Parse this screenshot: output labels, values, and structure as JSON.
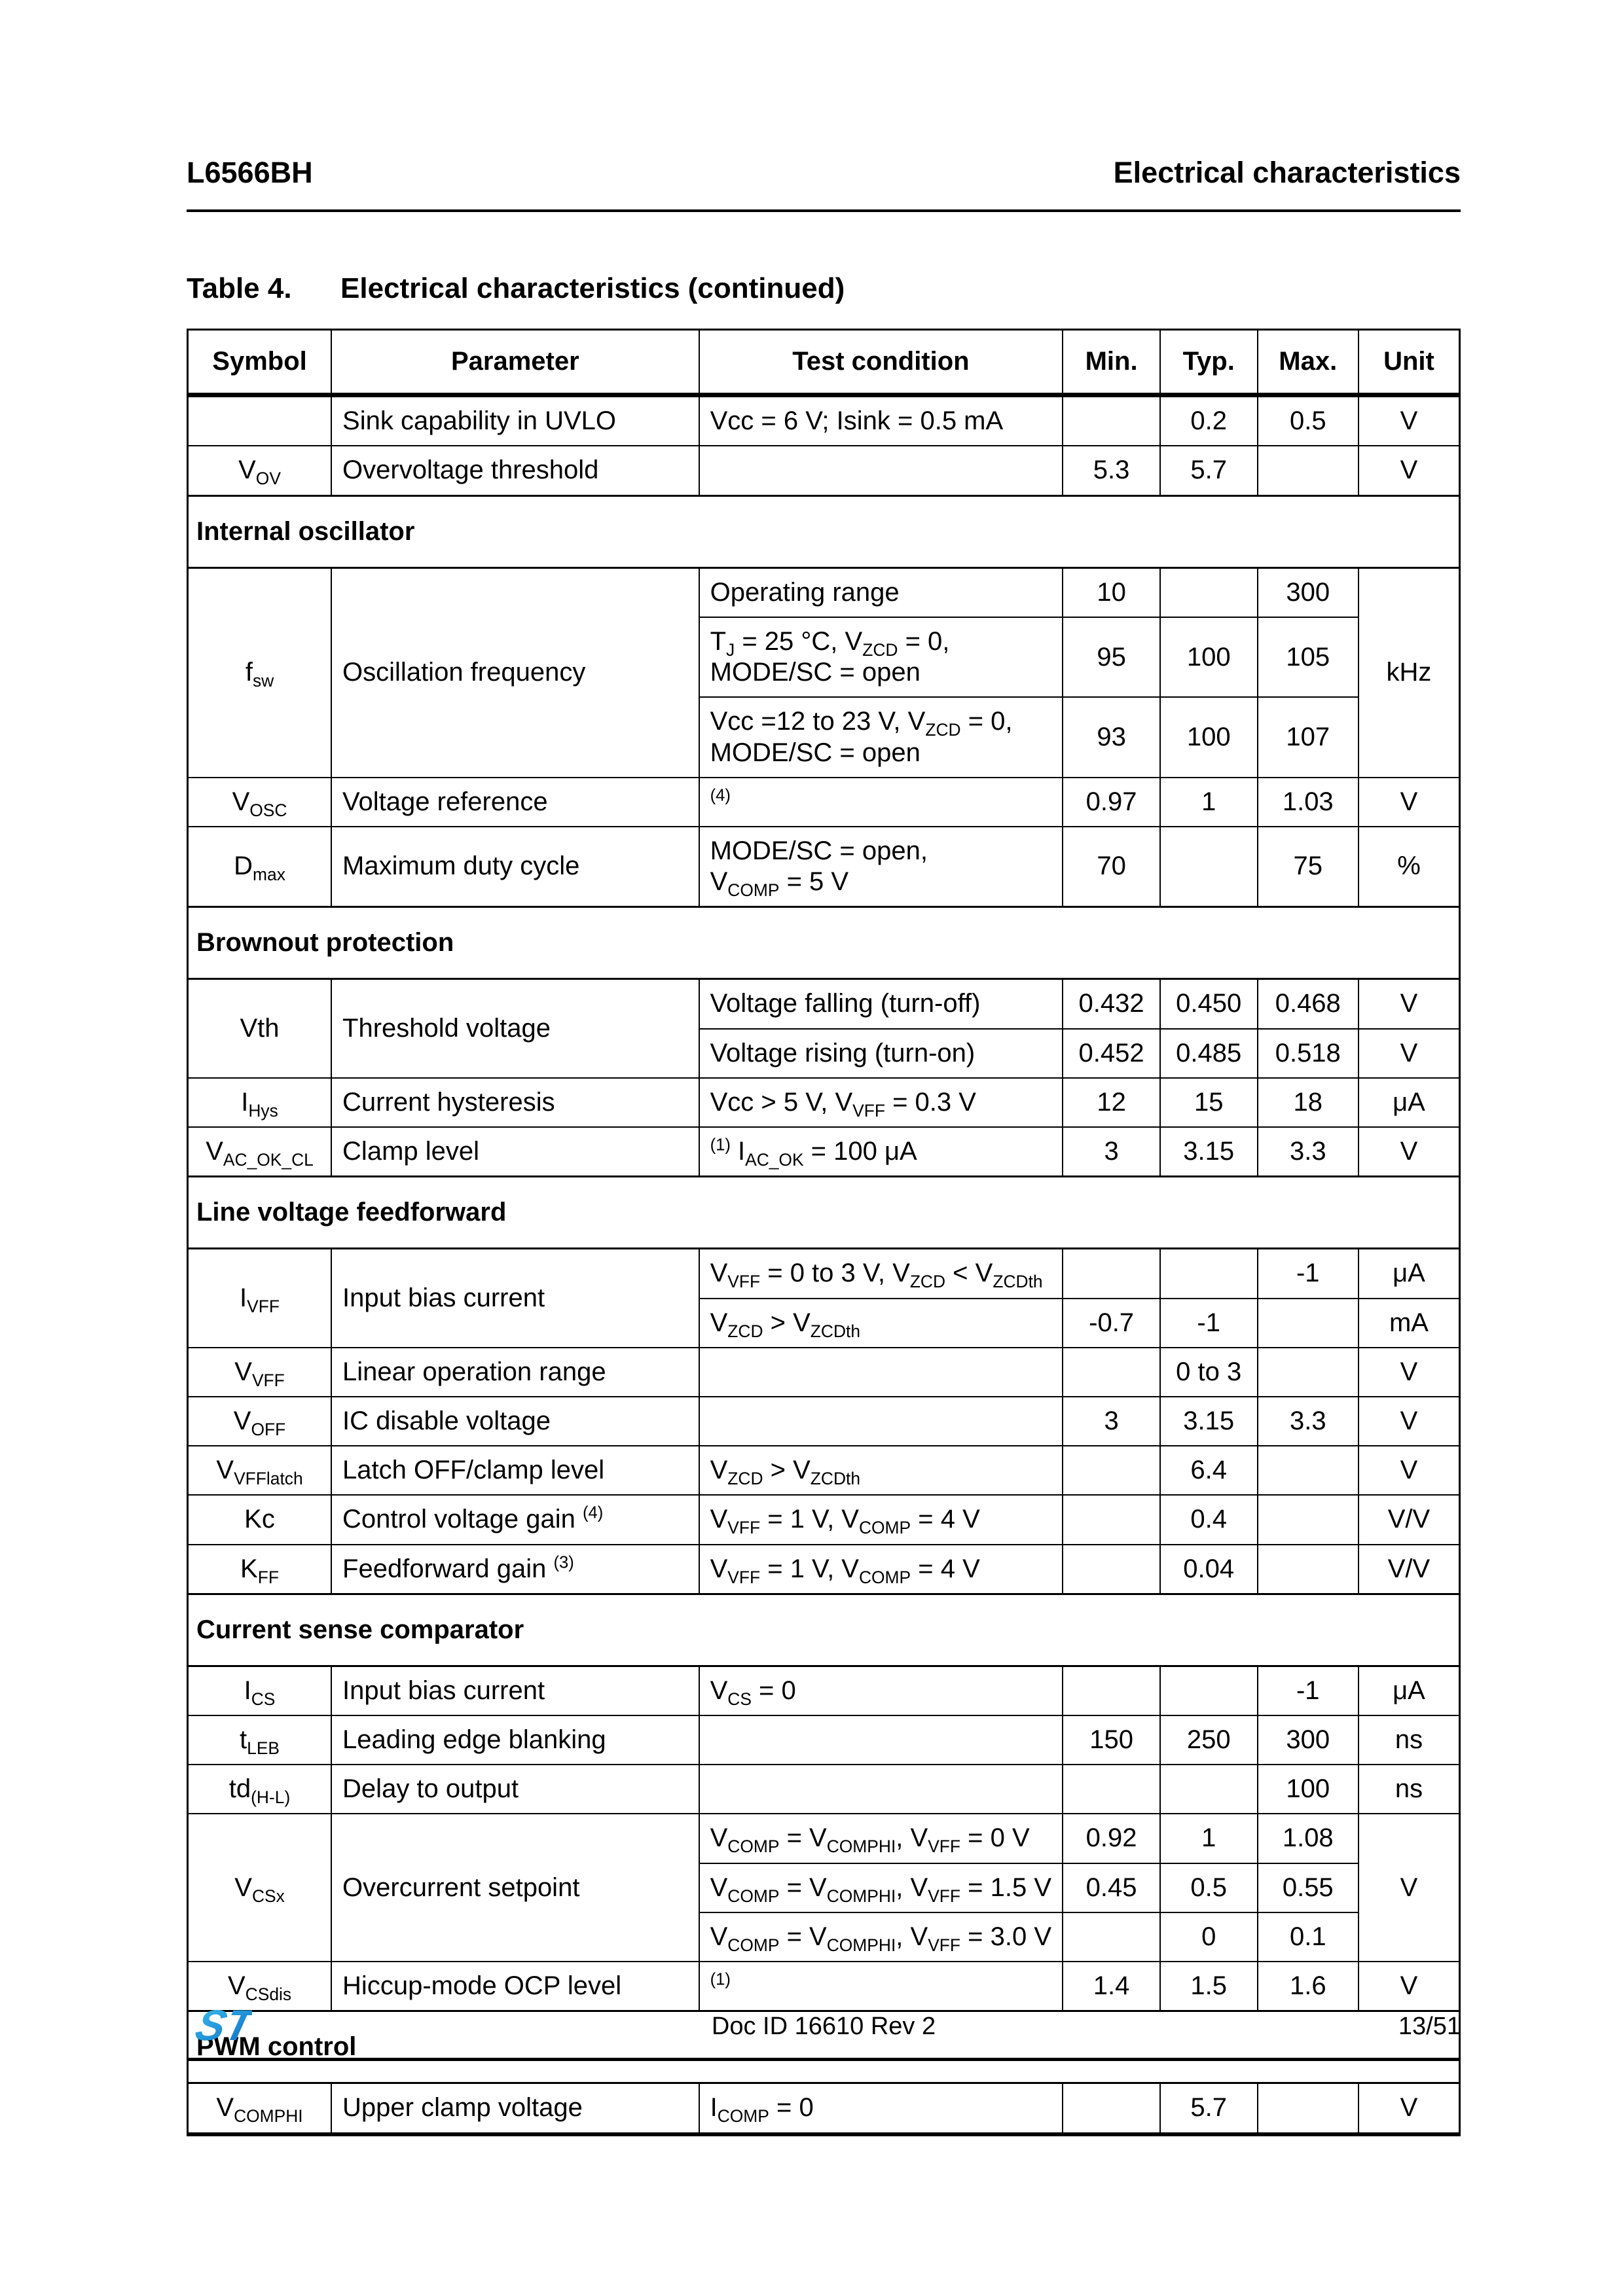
{
  "header": {
    "left": "L6566BH",
    "right": "Electrical characteristics"
  },
  "table": {
    "caption_label": "Table 4.",
    "caption_title": "Electrical characteristics  (continued)",
    "columns": [
      "Symbol",
      "Parameter",
      "Test condition",
      "Min.",
      "Typ.",
      "Max.",
      "Unit"
    ],
    "sections": [
      {
        "title": null,
        "rows": [
          {
            "sym": "",
            "par": "Sink capability in UVLO",
            "cond": "Vcc = 6 V; Isink = 0.5 mA",
            "min": "",
            "typ": "0.2",
            "max": "0.5",
            "unit": "V"
          },
          {
            "sym": "V~OV~",
            "par": "Overvoltage threshold",
            "cond": "",
            "min": "5.3",
            "typ": "5.7",
            "max": "",
            "unit": "V"
          }
        ]
      },
      {
        "title": "Internal oscillator",
        "rows": [
          {
            "sym": {
              "t": "f~sw~",
              "rs": 3
            },
            "par": {
              "t": "Oscillation frequency",
              "rs": 3
            },
            "cond": "Operating range",
            "min": "10",
            "typ": "",
            "max": "300",
            "unit": {
              "t": "kHz",
              "rs": 3
            }
          },
          {
            "cond": "T~J~ = 25 °C, V~ZCD~ = 0,\nMODE/SC = open",
            "min": "95",
            "typ": "100",
            "max": "105"
          },
          {
            "cond": "Vcc =12 to 23 V, V~ZCD~ = 0,\nMODE/SC = open",
            "min": "93",
            "typ": "100",
            "max": "107"
          },
          {
            "sym": "V~OSC~",
            "par": "Voltage reference",
            "cond": "^(4)^",
            "min": "0.97",
            "typ": "1",
            "max": "1.03",
            "unit": "V"
          },
          {
            "sym": "D~max~",
            "par": "Maximum duty cycle",
            "cond": "MODE/SC = open,\nV~COMP~ = 5 V",
            "min": "70",
            "typ": "",
            "max": "75",
            "unit": "%"
          }
        ]
      },
      {
        "title": "Brownout protection",
        "rows": [
          {
            "sym": {
              "t": "Vth",
              "rs": 2
            },
            "par": {
              "t": "Threshold voltage",
              "rs": 2
            },
            "cond": "Voltage falling (turn-off)",
            "min": "0.432",
            "typ": "0.450",
            "max": "0.468",
            "unit": "V"
          },
          {
            "cond": "Voltage rising (turn-on)",
            "min": "0.452",
            "typ": "0.485",
            "max": "0.518",
            "unit": "V"
          },
          {
            "sym": "I~Hys~",
            "par": "Current hysteresis",
            "cond": "Vcc > 5 V, V~VFF~ = 0.3 V",
            "min": "12",
            "typ": "15",
            "max": "18",
            "unit": "μA"
          },
          {
            "sym": "V~AC_OK_CL~",
            "par": "Clamp level",
            "cond": "^(1)^ I~AC_OK~ = 100 μA",
            "min": "3",
            "typ": "3.15",
            "max": "3.3",
            "unit": "V"
          }
        ]
      },
      {
        "title": "Line voltage feedforward",
        "rows": [
          {
            "sym": {
              "t": "I~VFF~",
              "rs": 2
            },
            "par": {
              "t": "Input bias current",
              "rs": 2
            },
            "cond": "V~VFF~ = 0 to 3 V, V~ZCD~ < V~ZCDth~",
            "min": "",
            "typ": "",
            "max": "-1",
            "unit": "μA"
          },
          {
            "cond": "V~ZCD~ > V~ZCDth~",
            "min": "-0.7",
            "typ": "-1",
            "max": "",
            "unit": "mA"
          },
          {
            "sym": "V~VFF~",
            "par": "Linear operation range",
            "cond": "",
            "min": "",
            "typ": "0 to 3",
            "max": "",
            "unit": "V"
          },
          {
            "sym": "V~OFF~",
            "par": "IC disable voltage",
            "cond": "",
            "min": "3",
            "typ": "3.15",
            "max": "3.3",
            "unit": "V"
          },
          {
            "sym": "V~VFFlatch~",
            "par": "Latch OFF/clamp level",
            "cond": "V~ZCD~ > V~ZCDth~",
            "min": "",
            "typ": "6.4",
            "max": "",
            "unit": "V"
          },
          {
            "sym": "Kc",
            "par": "Control voltage gain ^(4)^",
            "cond": "V~VFF~ = 1 V, V~COMP~ = 4 V",
            "min": "",
            "typ": "0.4",
            "max": "",
            "unit": "V/V"
          },
          {
            "sym": "K~FF~",
            "par": "Feedforward gain ^(3)^",
            "cond": "V~VFF~ = 1 V, V~COMP~ = 4 V",
            "min": "",
            "typ": "0.04",
            "max": "",
            "unit": "V/V"
          }
        ]
      },
      {
        "title": "Current sense comparator",
        "rows": [
          {
            "sym": "I~CS~",
            "par": "Input bias current",
            "cond": "V~CS~ = 0",
            "min": "",
            "typ": "",
            "max": "-1",
            "unit": "μA"
          },
          {
            "sym": "t~LEB~",
            "par": "Leading edge blanking",
            "cond": "",
            "min": "150",
            "typ": "250",
            "max": "300",
            "unit": "ns"
          },
          {
            "sym": "td~(H-L)~",
            "par": "Delay to output",
            "cond": "",
            "min": "",
            "typ": "",
            "max": "100",
            "unit": "ns"
          },
          {
            "sym": {
              "t": "V~CSx~",
              "rs": 3
            },
            "par": {
              "t": "Overcurrent setpoint",
              "rs": 3
            },
            "cond": "V~COMP~ = V~COMPHI~, V~VFF~ = 0 V",
            "min": "0.92",
            "typ": "1",
            "max": "1.08",
            "unit": {
              "t": "V",
              "rs": 3
            }
          },
          {
            "cond": "V~COMP~ = V~COMPHI~, V~VFF~ = 1.5 V",
            "min": "0.45",
            "typ": "0.5",
            "max": "0.55"
          },
          {
            "cond": "V~COMP~ = V~COMPHI~, V~VFF~ = 3.0 V",
            "min": "",
            "typ": "0",
            "max": "0.1"
          },
          {
            "sym": "V~CSdis~",
            "par": "Hiccup-mode OCP level",
            "cond": "^(1)^",
            "min": "1.4",
            "typ": "1.5",
            "max": "1.6",
            "unit": "V"
          }
        ]
      },
      {
        "title": "PWM control",
        "rows": [
          {
            "sym": "V~COMPHI~",
            "par": "Upper clamp voltage",
            "cond": "I~COMP~ = 0",
            "min": "",
            "typ": "5.7",
            "max": "",
            "unit": "V"
          }
        ]
      }
    ]
  },
  "footer": {
    "logo_icon": "st-logo",
    "logo_colors": {
      "light": "#3dbdee",
      "mid": "#1e8fd5",
      "dark": "#0e6cc0"
    },
    "doc_id": "Doc ID 16610 Rev 2",
    "page_number": "13/51"
  }
}
